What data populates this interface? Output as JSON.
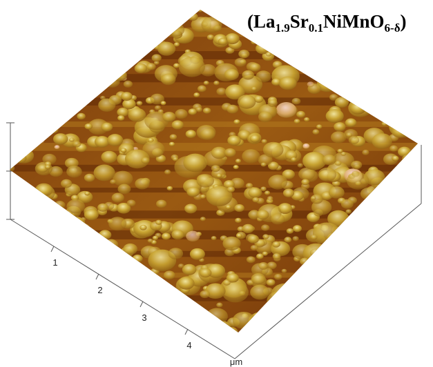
{
  "title": {
    "parts": [
      "(",
      "La",
      "1.9",
      "Sr",
      "0.1",
      "NiMnO",
      "6-δ",
      ")"
    ]
  },
  "axis": {
    "ticks": [
      "1",
      "2",
      "3",
      "4"
    ],
    "unit": "μm"
  }
}
